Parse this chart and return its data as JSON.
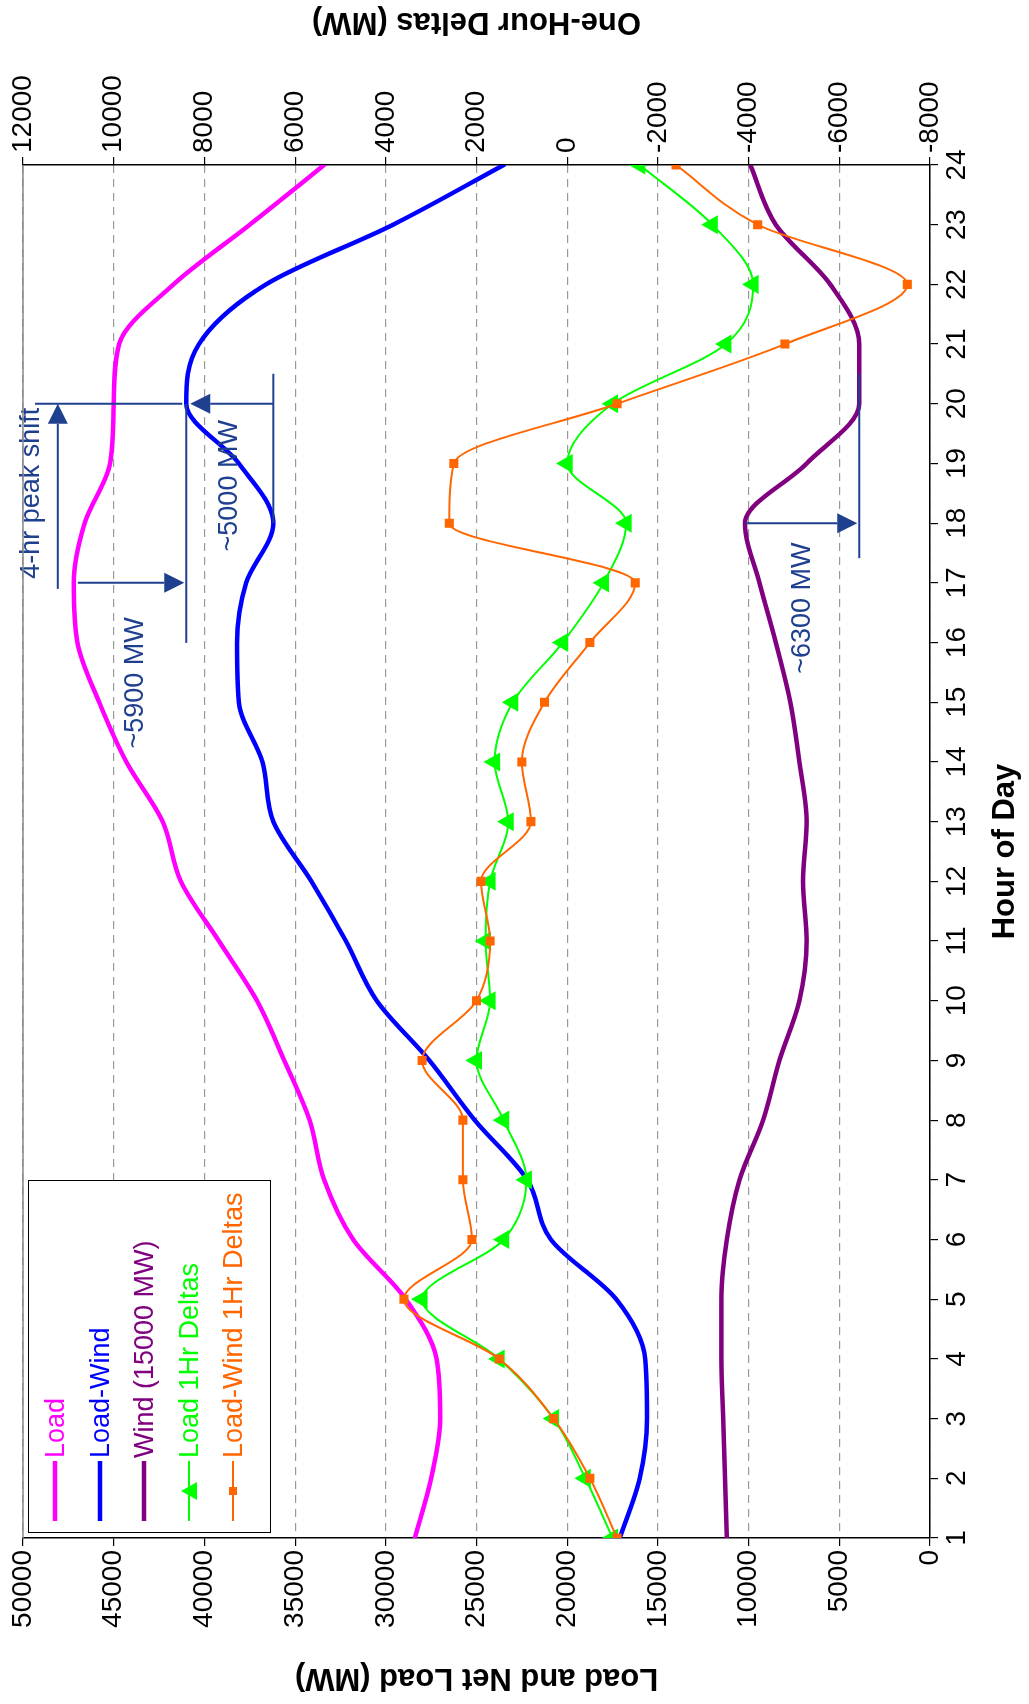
{
  "chart_data": {
    "type": "line",
    "orientation": "horizontal",
    "xlabel": "Load and Net Load (MW)",
    "ylabel": "Hour of Day",
    "x2label": "One-Hour Deltas (MW)",
    "x": [
      1,
      2,
      3,
      4,
      5,
      6,
      7,
      8,
      9,
      10,
      11,
      12,
      13,
      14,
      15,
      16,
      17,
      18,
      19,
      20,
      21,
      22,
      23,
      24
    ],
    "ylim": [
      1,
      24
    ],
    "yticks": [
      1,
      2,
      3,
      4,
      5,
      6,
      7,
      8,
      9,
      10,
      11,
      12,
      13,
      14,
      15,
      16,
      17,
      18,
      19,
      20,
      21,
      22,
      23,
      24
    ],
    "xlim": [
      50000,
      0
    ],
    "xticks": [
      0,
      5000,
      10000,
      15000,
      20000,
      25000,
      30000,
      35000,
      40000,
      45000,
      50000
    ],
    "x2lim": [
      12000,
      -8000
    ],
    "x2ticks": [
      -8000,
      -6000,
      -4000,
      -2000,
      0,
      2000,
      4000,
      6000,
      8000,
      10000,
      12000
    ],
    "grid": "x",
    "legend": "bottom left",
    "series": [
      {
        "name": "Load",
        "color": "#ff00ff",
        "marker": "none",
        "values": [
          28400,
          27500,
          27000,
          27200,
          28900,
          31800,
          33400,
          34200,
          35600,
          37100,
          39200,
          41300,
          42300,
          44300,
          45800,
          47000,
          47200,
          46600,
          45200,
          45000,
          44700,
          41700,
          37500,
          33400
        ]
      },
      {
        "name": "Load-Wind",
        "color": "#0000ff",
        "marker": "none",
        "values": [
          17100,
          16000,
          15600,
          15700,
          17300,
          20900,
          22200,
          25100,
          27600,
          30500,
          32200,
          34100,
          36200,
          36800,
          38100,
          38200,
          37700,
          36200,
          38100,
          41000,
          40300,
          36600,
          29600,
          23500
        ]
      },
      {
        "name": "Wind (15000 MW)",
        "color": "#800080",
        "marker": "none",
        "values": [
          11200,
          11300,
          11400,
          11500,
          11500,
          11200,
          10500,
          9200,
          8300,
          7200,
          6800,
          7000,
          6800,
          7200,
          7700,
          8500,
          9400,
          10200,
          6800,
          3900,
          3900,
          5500,
          8500,
          9900
        ]
      },
      {
        "name": "Load 1Hr Deltas",
        "color": "#00ff00",
        "marker": "triangle",
        "axis": "x2",
        "values": [
          -1000,
          -400,
          300,
          1500,
          3200,
          1400,
          900,
          1400,
          2000,
          1700,
          1800,
          1700,
          1300,
          1600,
          1200,
          100,
          -800,
          -1300,
          0,
          -1000,
          -3500,
          -4100,
          -3200,
          -1600
        ]
      },
      {
        "name": "Load-Wind 1Hr Deltas",
        "color": "#ff6600",
        "marker": "square",
        "axis": "x2",
        "values": [
          -1100,
          -500,
          300,
          1500,
          3600,
          2100,
          2300,
          2300,
          3200,
          2000,
          1700,
          1900,
          800,
          1000,
          500,
          -500,
          -1500,
          2600,
          2500,
          -1100,
          -4800,
          -7500,
          -4200,
          -2400
        ]
      }
    ],
    "annotations": [
      {
        "text": "4-hr peak shift",
        "x": 41000,
        "y": 20
      },
      "~5900 MW",
      "~5000 MW",
      {
        "text": "~6300 MW",
        "x": 10200,
        "y": 18
      }
    ]
  }
}
